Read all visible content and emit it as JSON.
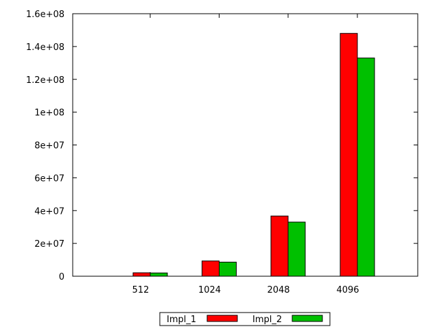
{
  "chart_data": {
    "type": "bar",
    "categories": [
      "512",
      "1024",
      "2048",
      "4096"
    ],
    "series": [
      {
        "name": "Impl_1",
        "color": "#ff0000",
        "values": [
          2100000,
          9300000,
          36700000,
          148000000
        ]
      },
      {
        "name": "Impl_2",
        "color": "#00c000",
        "values": [
          2000000,
          8600000,
          33000000,
          133000000
        ]
      }
    ],
    "ylim": [
      0,
      160000000
    ],
    "yticks": [
      0,
      20000000,
      40000000,
      60000000,
      80000000,
      100000000,
      120000000,
      140000000,
      160000000
    ],
    "ytick_labels": [
      "0",
      "2e+07",
      "4e+07",
      "6e+07",
      "8e+07",
      "1e+08",
      "1.2e+08",
      "1.4e+08",
      "1.6e+08"
    ],
    "grid": false,
    "legend_position": "bottom-center"
  }
}
